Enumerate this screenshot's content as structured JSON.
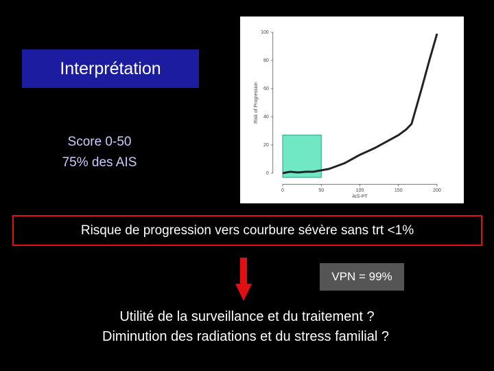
{
  "slide": {
    "heading": "Interprétation",
    "score_lines": [
      "Score 0-50",
      "75% des AIS"
    ],
    "risk_statement": "Risque de progression vers courbure sévère sans trt <1%",
    "vpn": "VPN = 99%",
    "questions": [
      "Utilité de la surveillance et du traitement ?",
      "Diminution des radiations et du stress familial ?"
    ]
  },
  "chart_data": {
    "type": "line",
    "x_label": "AIS-PT",
    "y_label": "Risk of Progression",
    "x": [
      0,
      10,
      20,
      30,
      40,
      50,
      60,
      80,
      100,
      120,
      140,
      150,
      160,
      167,
      180,
      190,
      200
    ],
    "values": [
      0,
      1,
      0.5,
      1,
      1,
      2,
      3,
      7,
      13,
      18,
      24,
      27,
      31,
      35,
      60,
      80,
      99
    ],
    "color": "#222222",
    "xlim": [
      -10,
      210
    ],
    "ylim": [
      -5,
      105
    ],
    "xticks": [
      0,
      50,
      100,
      150,
      200
    ],
    "yticks": [
      0,
      20,
      40,
      60,
      80,
      100
    ],
    "highlight": {
      "xlim": [
        0,
        50
      ],
      "ylim": [
        -3,
        27
      ],
      "color": "#40e0b0"
    }
  }
}
